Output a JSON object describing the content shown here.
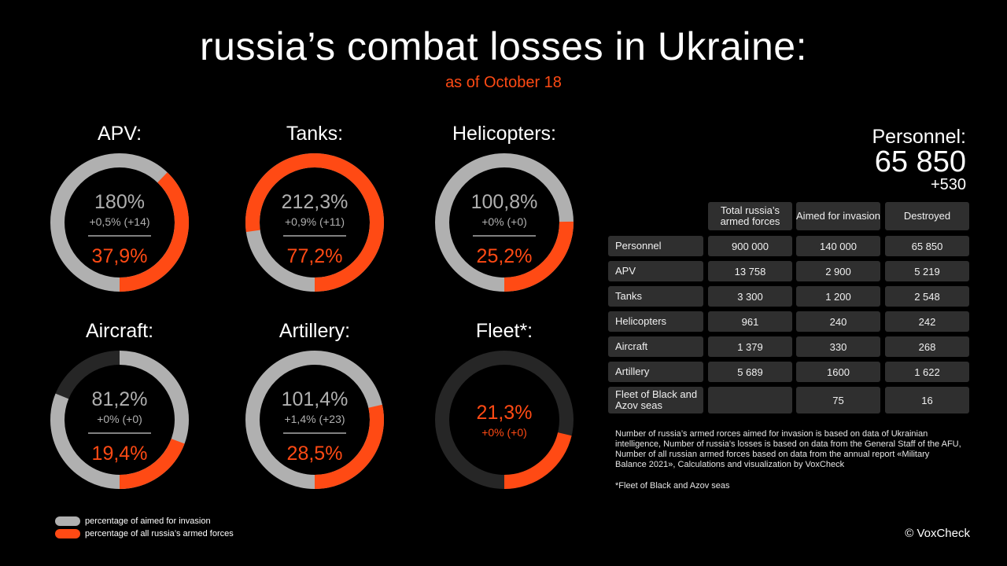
{
  "title": "russia’s combat losses in Ukraine:",
  "subtitle": "as of October 18",
  "colors": {
    "invasion": "#b0b0b0",
    "all_forces": "#ff4a14",
    "track_empty": "#262626"
  },
  "chart_data": {
    "type": "pie",
    "donuts": [
      {
        "label": "APV:",
        "pct_invasion": "180%",
        "delta": "+0,5% (+14)",
        "pct_all": "37,9%",
        "invasion_fill": 1.0,
        "all_fill": 0.379
      },
      {
        "label": "Tanks:",
        "pct_invasion": "212,3%",
        "delta": "+0,9% (+11)",
        "pct_all": "77,2%",
        "invasion_fill": 1.0,
        "all_fill": 0.772
      },
      {
        "label": "Helicopters:",
        "pct_invasion": "100,8%",
        "delta": "+0% (+0)",
        "pct_all": "25,2%",
        "invasion_fill": 1.0,
        "all_fill": 0.252
      },
      {
        "label": "Aircraft:",
        "pct_invasion": "81,2%",
        "delta": "+0% (+0)",
        "pct_all": "19,4%",
        "invasion_fill": 0.812,
        "all_fill": 0.194
      },
      {
        "label": "Artillery:",
        "pct_invasion": "101,4%",
        "delta": "+1,4% (+23)",
        "pct_all": "28,5%",
        "invasion_fill": 1.0,
        "all_fill": 0.285
      },
      {
        "label": "Fleet*:",
        "pct_invasion": "",
        "delta": "+0% (+0)",
        "pct_all": "21,3%",
        "invasion_fill": 0,
        "all_fill": 0.213
      }
    ]
  },
  "personnel": {
    "label": "Personnel:",
    "value": "65 850",
    "delta": "+530"
  },
  "table": {
    "headers": [
      "Total russia’s armed forces",
      "Aimed for invasion",
      "Destroyed"
    ],
    "rows": [
      {
        "label": "Personnel",
        "total": "900 000",
        "aimed": "140 000",
        "destroyed": "65 850"
      },
      {
        "label": "APV",
        "total": "13 758",
        "aimed": "2 900",
        "destroyed": "5 219"
      },
      {
        "label": "Tanks",
        "total": "3 300",
        "aimed": "1 200",
        "destroyed": "2 548"
      },
      {
        "label": "Helicopters",
        "total": "961",
        "aimed": "240",
        "destroyed": "242"
      },
      {
        "label": "Aircraft",
        "total": "1 379",
        "aimed": "330",
        "destroyed": "268"
      },
      {
        "label": "Artillery",
        "total": "5 689",
        "aimed": "1600",
        "destroyed": "1 622"
      },
      {
        "label": "Fleet of Black and Azov seas",
        "total": "",
        "aimed": "75",
        "destroyed": "16"
      }
    ]
  },
  "note": "Number of russia’s armed rorces aimed for invasion  is based on data of Ukrainian intelligence, Number of russia's losses is based on data from the General Staff of the AFU, Number of all russian armed forces based on  data from the annual report «Military Balance 2021», Calculations and visualization by VoxCheck",
  "footnote": "*Fleet of Black and Azov seas",
  "legend": {
    "invasion": "percentage of aimed for invasion",
    "all_forces": "percentage of all russia’s armed forces"
  },
  "copyright": "© VoxCheck"
}
